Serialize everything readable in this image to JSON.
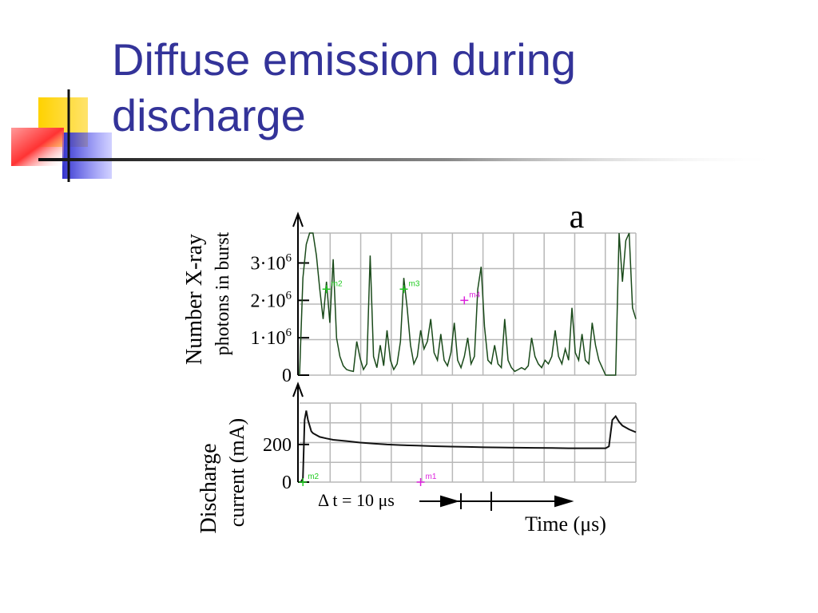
{
  "slide": {
    "title_line1": "Diffuse emission during",
    "title_line2": "discharge"
  },
  "colors": {
    "title": "#333399",
    "deco_yellow": "#FFD200",
    "deco_blue": "#3333CC",
    "deco_red": "#FF3333",
    "xray_trace": "#1a4a1a",
    "current_trace": "#111111",
    "marker_green": "#22cc22",
    "marker_magenta": "#dd22dd"
  },
  "chart_data": [
    {
      "type": "line",
      "panel_label": "a",
      "ylabel_line1": "Number X-ray",
      "ylabel_line2": "photons in burst",
      "yticks": [
        {
          "value": 0,
          "label": "0"
        },
        {
          "value": 1000000,
          "base": "1·10",
          "exp": "6"
        },
        {
          "value": 2000000,
          "base": "2·10",
          "exp": "6"
        },
        {
          "value": 3000000,
          "base": "3·10",
          "exp": "6"
        }
      ],
      "ylim": [
        0,
        3800000
      ],
      "xlim": [
        0,
        100
      ],
      "grid": true,
      "markers": [
        {
          "label": "m2",
          "x": 8,
          "y": 2300000,
          "color": "#22cc22"
        },
        {
          "label": "m3",
          "x": 31,
          "y": 2300000,
          "color": "#22cc22"
        },
        {
          "label": "m4",
          "x": 49,
          "y": 2000000,
          "color": "#dd22dd"
        }
      ],
      "series": [
        {
          "x": [
            0,
            1,
            2,
            3,
            4,
            5,
            6,
            7,
            8,
            9,
            10,
            11,
            12,
            13,
            14,
            15,
            16,
            17,
            18,
            19,
            20,
            21,
            22,
            23,
            24,
            25,
            26,
            27,
            28,
            29,
            30,
            31,
            32,
            33,
            34,
            35,
            36,
            37,
            38,
            39,
            40,
            41,
            42,
            43,
            44,
            45,
            46,
            47,
            48,
            49,
            50,
            51,
            52,
            53,
            54,
            55,
            56,
            57,
            58,
            59,
            60,
            61,
            62,
            63,
            64,
            65,
            66,
            67,
            68,
            69,
            70,
            71,
            72,
            73,
            74,
            75,
            76,
            77,
            78,
            79,
            80,
            81,
            82,
            83,
            84,
            85,
            86,
            87,
            88,
            89,
            90,
            91,
            92,
            93,
            94,
            95,
            96,
            97,
            98,
            99,
            100
          ],
          "y": [
            0,
            2600000,
            3500000,
            3800000,
            3800000,
            3200000,
            2300000,
            1500000,
            2500000,
            1400000,
            3100000,
            1000000,
            500000,
            250000,
            150000,
            120000,
            100000,
            900000,
            450000,
            150000,
            300000,
            3200000,
            500000,
            200000,
            800000,
            250000,
            1200000,
            400000,
            150000,
            300000,
            900000,
            2600000,
            1800000,
            800000,
            300000,
            500000,
            1200000,
            700000,
            900000,
            1500000,
            600000,
            400000,
            1100000,
            400000,
            250000,
            600000,
            1400000,
            400000,
            200000,
            500000,
            1000000,
            300000,
            500000,
            2300000,
            2900000,
            1300000,
            400000,
            300000,
            800000,
            300000,
            200000,
            1500000,
            400000,
            200000,
            100000,
            150000,
            200000,
            150000,
            250000,
            1000000,
            500000,
            300000,
            200000,
            400000,
            300000,
            500000,
            1200000,
            500000,
            300000,
            700000,
            400000,
            1800000,
            600000,
            400000,
            1100000,
            400000,
            300000,
            1400000,
            800000,
            400000,
            200000,
            0,
            0,
            0,
            0,
            3800000,
            2500000,
            3600000,
            3800000,
            1800000,
            1500000
          ]
        }
      ]
    },
    {
      "type": "line",
      "ylabel_line1": "Discharge",
      "ylabel_line2": "current (mA)",
      "yticks": [
        {
          "value": 0,
          "label": "0"
        },
        {
          "value": 200,
          "label": "200"
        }
      ],
      "ylim": [
        0,
        420
      ],
      "xlim": [
        0,
        100
      ],
      "grid": true,
      "xlabel": "Time (μs)",
      "scale_note": "Δ t = 10 μs",
      "markers": [
        {
          "label": "m2",
          "x": 1,
          "y": 0,
          "color": "#22cc22"
        },
        {
          "label": "m1",
          "x": 36,
          "y": 0,
          "color": "#dd22dd"
        }
      ],
      "series": [
        {
          "x": [
            0,
            0.5,
            1,
            1.5,
            2,
            2.5,
            3,
            3.5,
            4,
            5,
            6,
            8,
            10,
            14,
            18,
            22,
            26,
            30,
            35,
            40,
            45,
            50,
            55,
            60,
            65,
            70,
            75,
            80,
            85,
            90,
            91,
            92,
            93,
            94,
            95,
            96,
            97,
            98,
            100
          ],
          "y": [
            0,
            2,
            20,
            330,
            380,
            330,
            300,
            270,
            260,
            250,
            240,
            232,
            225,
            218,
            210,
            205,
            200,
            197,
            194,
            191,
            189,
            187,
            185,
            184,
            183,
            182,
            181,
            180,
            180,
            180,
            180,
            190,
            330,
            350,
            320,
            300,
            290,
            280,
            265
          ]
        }
      ]
    }
  ]
}
